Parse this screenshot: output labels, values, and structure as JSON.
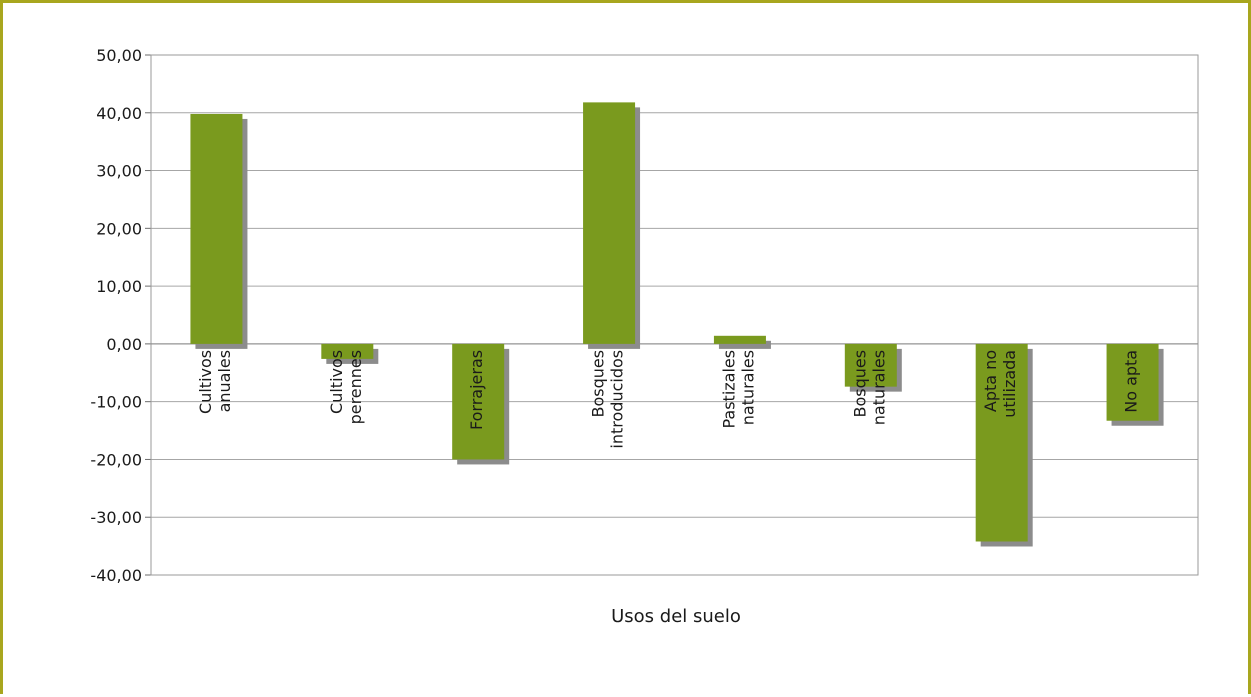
{
  "chart_data": {
    "type": "bar",
    "title": "",
    "xlabel": "Usos del suelo",
    "ylabel": "",
    "categories": [
      [
        "Cultivos",
        "anuales"
      ],
      [
        "Cultivos",
        "perennes"
      ],
      [
        "Forrajeras"
      ],
      [
        "Bosques",
        "introducidos"
      ],
      [
        "Pastizales",
        "naturales"
      ],
      [
        "Bosques",
        "naturales"
      ],
      [
        "Apta no",
        "utilizada"
      ],
      [
        "No apta"
      ]
    ],
    "values": [
      39.8,
      -2.6,
      -20.0,
      41.8,
      1.4,
      -7.4,
      -34.2,
      -13.3
    ],
    "ylim": [
      -40,
      50
    ],
    "yticks": [
      "50,00",
      "40,00",
      "30,00",
      "20,00",
      "10,00",
      "0,00",
      "-10,00",
      "-20,00",
      "-30,00",
      "-40,00"
    ],
    "grid": true,
    "colors": {
      "bar": "#7a9a1e",
      "shadow": "#8c8c8c",
      "grid": "#a6a6a6",
      "frame": "#a8a61e",
      "label_on_bar": "#ffffff",
      "label_default": "#1a1a1a"
    }
  }
}
